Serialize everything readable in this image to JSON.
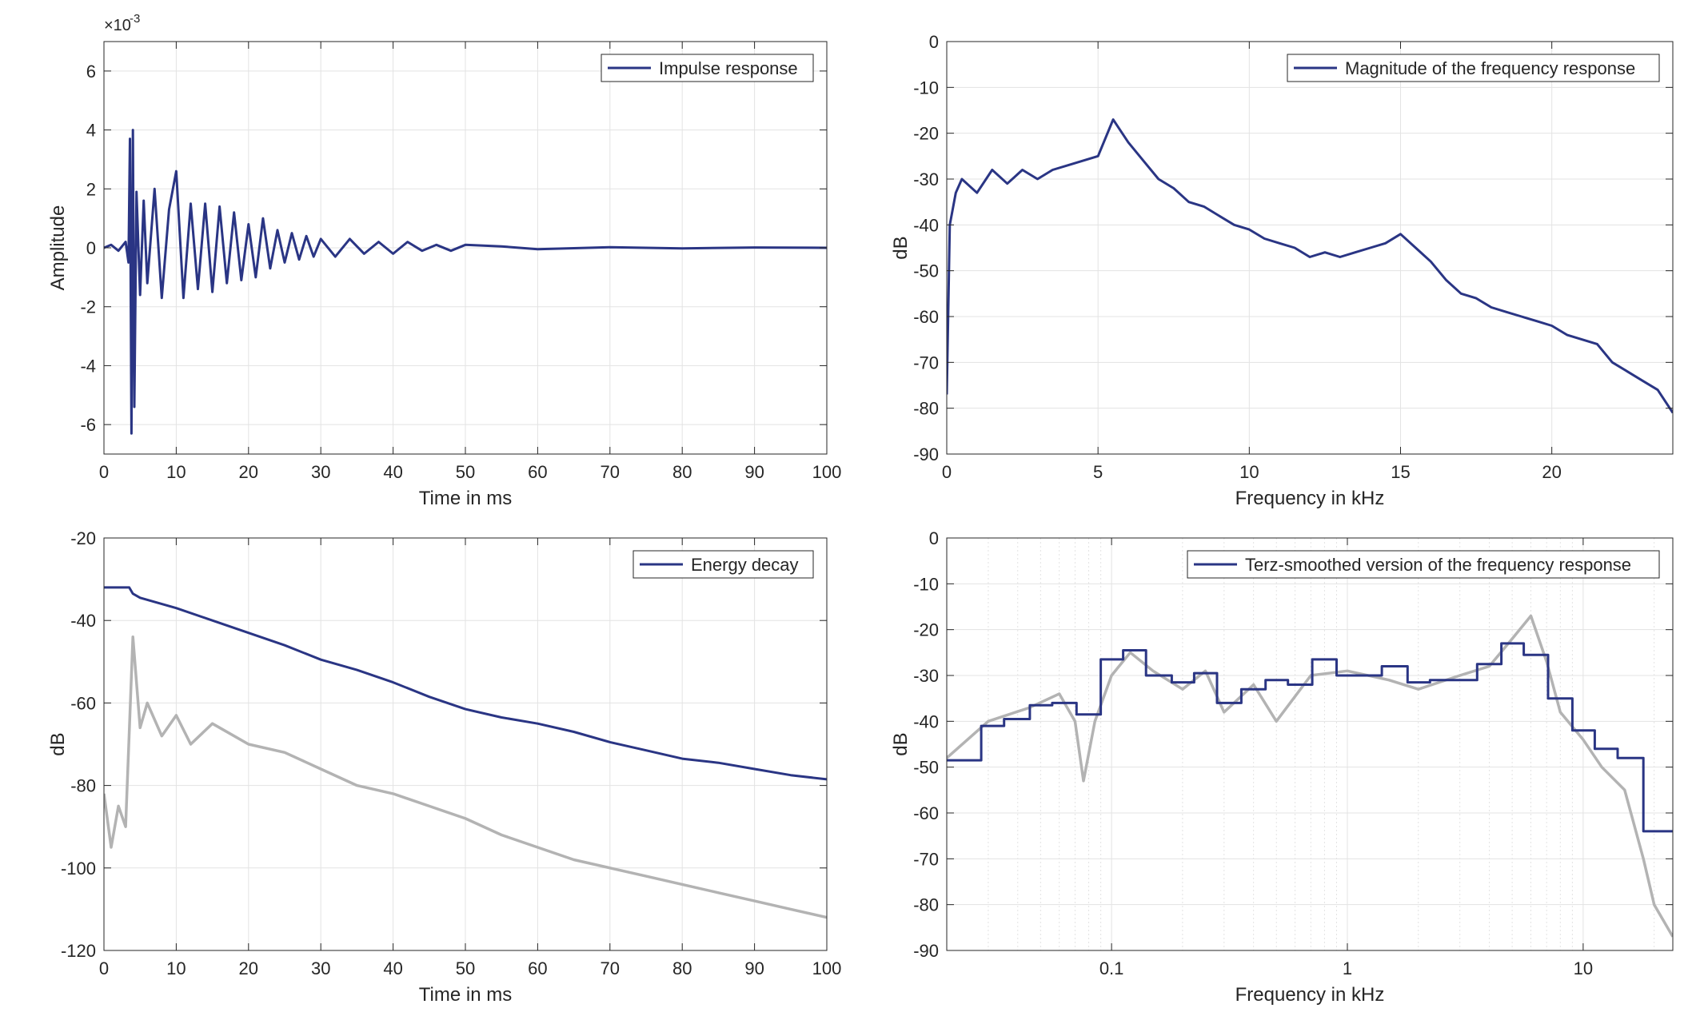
{
  "chart_data": [
    {
      "type": "line",
      "title": "",
      "xlabel": "Time in ms",
      "ylabel": "Amplitude",
      "exponent_label": "×10",
      "exponent_power": "-3",
      "xlim": [
        0,
        100
      ],
      "ylim": [
        -7,
        7
      ],
      "xticks": [
        0,
        10,
        20,
        30,
        40,
        50,
        60,
        70,
        80,
        90,
        100
      ],
      "yticks": [
        -6,
        -4,
        -2,
        0,
        2,
        4,
        6
      ],
      "grid": true,
      "legend_position": "top-right",
      "series": [
        {
          "name": "Impulse response",
          "color": "#2a3584",
          "x": [
            0,
            1,
            2,
            3,
            3.4,
            3.6,
            3.8,
            4.0,
            4.2,
            4.5,
            5,
            5.5,
            6,
            7,
            8,
            9,
            10,
            11,
            12,
            13,
            14,
            15,
            16,
            17,
            18,
            19,
            20,
            21,
            22,
            23,
            24,
            25,
            26,
            27,
            28,
            29,
            30,
            32,
            34,
            36,
            38,
            40,
            42,
            44,
            46,
            48,
            50,
            55,
            60,
            70,
            80,
            90,
            100
          ],
          "y": [
            0,
            0.1,
            -0.1,
            0.2,
            -0.5,
            3.7,
            -6.3,
            4.0,
            -5.4,
            1.9,
            -1.6,
            1.6,
            -1.2,
            2.0,
            -1.7,
            1.3,
            2.6,
            -1.7,
            1.5,
            -1.4,
            1.5,
            -1.5,
            1.4,
            -1.2,
            1.2,
            -1.1,
            0.8,
            -1.0,
            1.0,
            -0.7,
            0.6,
            -0.5,
            0.5,
            -0.4,
            0.4,
            -0.3,
            0.3,
            -0.3,
            0.3,
            -0.2,
            0.2,
            -0.2,
            0.2,
            -0.1,
            0.1,
            -0.1,
            0.1,
            0.05,
            -0.05,
            0.02,
            -0.02,
            0.01,
            0
          ]
        }
      ]
    },
    {
      "type": "line",
      "title": "",
      "xlabel": "Frequency in kHz",
      "ylabel": "dB",
      "xlim": [
        0,
        24
      ],
      "ylim": [
        -90,
        0
      ],
      "xticks": [
        0,
        5,
        10,
        15,
        20
      ],
      "yticks": [
        0,
        -10,
        -20,
        -30,
        -40,
        -50,
        -60,
        -70,
        -80,
        -90
      ],
      "grid": true,
      "legend_position": "top-right",
      "series": [
        {
          "name": "Magnitude of the frequency response",
          "color": "#2a3584",
          "x": [
            0,
            0.1,
            0.3,
            0.5,
            1.0,
            1.5,
            2.0,
            2.5,
            3.0,
            3.5,
            4.0,
            4.5,
            5.0,
            5.5,
            6.0,
            6.5,
            7.0,
            7.5,
            8.0,
            8.5,
            9.0,
            9.5,
            10.0,
            10.5,
            11.0,
            11.5,
            12.0,
            12.5,
            13.0,
            13.5,
            14.0,
            14.5,
            15.0,
            15.5,
            16.0,
            16.5,
            17.0,
            17.5,
            18.0,
            18.5,
            19.0,
            19.5,
            20.0,
            20.5,
            21.0,
            21.5,
            22.0,
            22.5,
            23.0,
            23.5,
            24.0
          ],
          "y": [
            -77,
            -40,
            -33,
            -30,
            -33,
            -28,
            -31,
            -28,
            -30,
            -28,
            -27,
            -26,
            -25,
            -17,
            -22,
            -26,
            -30,
            -32,
            -35,
            -36,
            -38,
            -40,
            -41,
            -43,
            -44,
            -45,
            -47,
            -46,
            -47,
            -46,
            -45,
            -44,
            -42,
            -45,
            -48,
            -52,
            -55,
            -56,
            -58,
            -59,
            -60,
            -61,
            -62,
            -64,
            -65,
            -66,
            -70,
            -72,
            -74,
            -76,
            -81
          ]
        }
      ]
    },
    {
      "type": "line",
      "title": "",
      "xlabel": "Time in ms",
      "ylabel": "dB",
      "xlim": [
        0,
        100
      ],
      "ylim": [
        -120,
        -20
      ],
      "xticks": [
        0,
        10,
        20,
        30,
        40,
        50,
        60,
        70,
        80,
        90,
        100
      ],
      "yticks": [
        -20,
        -40,
        -60,
        -80,
        -100,
        -120
      ],
      "grid": true,
      "legend_position": "top-right",
      "series": [
        {
          "name": "Energy decay",
          "color": "#2a3584",
          "x": [
            0,
            3.5,
            4,
            5,
            10,
            15,
            20,
            25,
            30,
            35,
            40,
            45,
            50,
            55,
            60,
            65,
            70,
            75,
            80,
            85,
            90,
            95,
            100
          ],
          "y": [
            -32,
            -32,
            -33.5,
            -34.5,
            -37,
            -40,
            -43,
            -46,
            -49.5,
            -52,
            -55,
            -58.5,
            -61.5,
            -63.5,
            -65,
            -67,
            -69.5,
            -71.5,
            -73.5,
            -74.5,
            -76,
            -77.5,
            -78.5
          ]
        },
        {
          "name": "",
          "color": "#b3b3b3",
          "x": [
            0,
            1,
            2,
            3,
            4,
            5,
            6,
            8,
            10,
            12,
            15,
            20,
            25,
            30,
            35,
            40,
            45,
            50,
            55,
            60,
            65,
            70,
            75,
            80,
            85,
            90,
            95,
            100
          ],
          "y": [
            -82,
            -95,
            -85,
            -90,
            -44,
            -66,
            -60,
            -68,
            -63,
            -70,
            -65,
            -70,
            -72,
            -76,
            -80,
            -82,
            -85,
            -88,
            -92,
            -95,
            -98,
            -100,
            -102,
            -104,
            -106,
            -108,
            -110,
            -112
          ]
        }
      ]
    },
    {
      "type": "line",
      "title": "",
      "xlabel": "Frequency in kHz",
      "ylabel": "dB",
      "xscale": "log",
      "xlim": [
        0.02,
        24
      ],
      "ylim": [
        -90,
        0
      ],
      "xticks": [
        0.1,
        1,
        10
      ],
      "xticklabels": [
        "0.1",
        "1",
        "10"
      ],
      "yticks": [
        0,
        -10,
        -20,
        -30,
        -40,
        -50,
        -60,
        -70,
        -80,
        -90
      ],
      "grid": true,
      "legend_position": "top-right",
      "series": [
        {
          "name": "Terz-smoothed version of the frequency response",
          "color": "#2a3584",
          "step": true,
          "x": [
            0.02,
            0.028,
            0.035,
            0.045,
            0.056,
            0.071,
            0.09,
            0.112,
            0.14,
            0.18,
            0.224,
            0.28,
            0.355,
            0.45,
            0.56,
            0.71,
            0.9,
            1.12,
            1.4,
            1.8,
            2.24,
            2.8,
            3.55,
            4.5,
            5.6,
            7.1,
            9.0,
            11.2,
            14.0,
            18.0,
            24.0
          ],
          "y": [
            -48.5,
            -41,
            -39.5,
            -36.5,
            -36,
            -38.5,
            -26.5,
            -24.5,
            -30,
            -31.5,
            -29.5,
            -36,
            -33,
            -31,
            -32,
            -26.5,
            -30,
            -30,
            -28,
            -31.5,
            -31,
            -31,
            -27.5,
            -23,
            -25.5,
            -35,
            -42,
            -46,
            -48,
            -64,
            -64
          ]
        },
        {
          "name": "",
          "color": "#b3b3b3",
          "x": [
            0.02,
            0.03,
            0.045,
            0.06,
            0.07,
            0.076,
            0.085,
            0.1,
            0.12,
            0.15,
            0.2,
            0.25,
            0.3,
            0.4,
            0.5,
            0.7,
            1,
            1.5,
            2,
            3,
            4,
            5,
            6,
            7,
            8,
            10,
            12,
            15,
            18,
            20,
            24
          ],
          "y": [
            -48,
            -40,
            -37,
            -34,
            -40,
            -53,
            -40,
            -30,
            -25,
            -29,
            -33,
            -29,
            -38,
            -32,
            -40,
            -30,
            -29,
            -31,
            -33,
            -30,
            -28,
            -22,
            -17,
            -27,
            -38,
            -44,
            -50,
            -55,
            -70,
            -80,
            -87
          ]
        }
      ]
    }
  ]
}
